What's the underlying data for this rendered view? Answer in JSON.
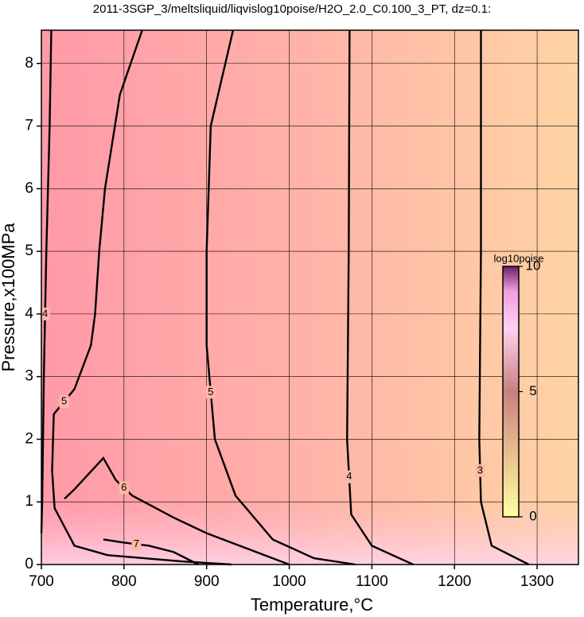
{
  "chart_data": {
    "type": "contour",
    "title": "2011-3SGP_3/meltsliquid/liqvislog10poise/H2O_2.0_C0.100_3_PT, dz=0.1:",
    "xlabel": "Temperature,°C",
    "ylabel": "Pressure,x100MPa",
    "xlim": [
      700,
      1350
    ],
    "ylim": [
      0,
      8.53
    ],
    "xticks": [
      700,
      800,
      900,
      1000,
      1100,
      1200,
      1300
    ],
    "yticks": [
      0,
      1,
      2,
      3,
      4,
      5,
      6,
      7,
      8
    ],
    "grid": true,
    "contours": [
      {
        "level": 3,
        "x": [
          1232,
          1232,
          1230,
          1232,
          1245,
          1290
        ],
        "y": [
          8.53,
          5,
          2,
          1,
          0.3,
          0
        ]
      },
      {
        "level": 4,
        "x": [
          1073,
          1072,
          1070,
          1075,
          1100,
          1150
        ],
        "y": [
          8.53,
          5,
          2,
          0.8,
          0.3,
          0
        ]
      },
      {
        "level": 4,
        "x": [
          712,
          710,
          706,
          703,
          701,
          700
        ],
        "y": [
          8.53,
          7,
          5,
          3,
          1,
          0.5
        ]
      },
      {
        "level": 5,
        "x": [
          932,
          905,
          900,
          900,
          910,
          935,
          980,
          1030,
          1080
        ],
        "y": [
          8.53,
          7,
          5,
          3.5,
          2,
          1.1,
          0.4,
          0.1,
          0
        ]
      },
      {
        "level": 5,
        "x": [
          822,
          795,
          777,
          770,
          765,
          760,
          740,
          715,
          713,
          716,
          740,
          780,
          870,
          930
        ],
        "y": [
          8.53,
          7.5,
          6,
          5,
          4,
          3.5,
          2.8,
          2.4,
          1.5,
          0.9,
          0.3,
          0.15,
          0.05,
          0
        ]
      },
      {
        "level": 6,
        "x": [
          728,
          740,
          775,
          790,
          810,
          860,
          900,
          960,
          1000
        ],
        "y": [
          1.05,
          1.2,
          1.7,
          1.35,
          1.1,
          0.75,
          0.5,
          0.2,
          0
        ]
      },
      {
        "level": 7,
        "x": [
          775,
          800,
          830,
          860,
          890
        ],
        "y": [
          0.4,
          0.35,
          0.3,
          0.2,
          0
        ]
      }
    ],
    "colorbar": {
      "label": "log10poise",
      "lim": [
        0,
        10
      ],
      "ticks": [
        0,
        5,
        10
      ]
    }
  }
}
